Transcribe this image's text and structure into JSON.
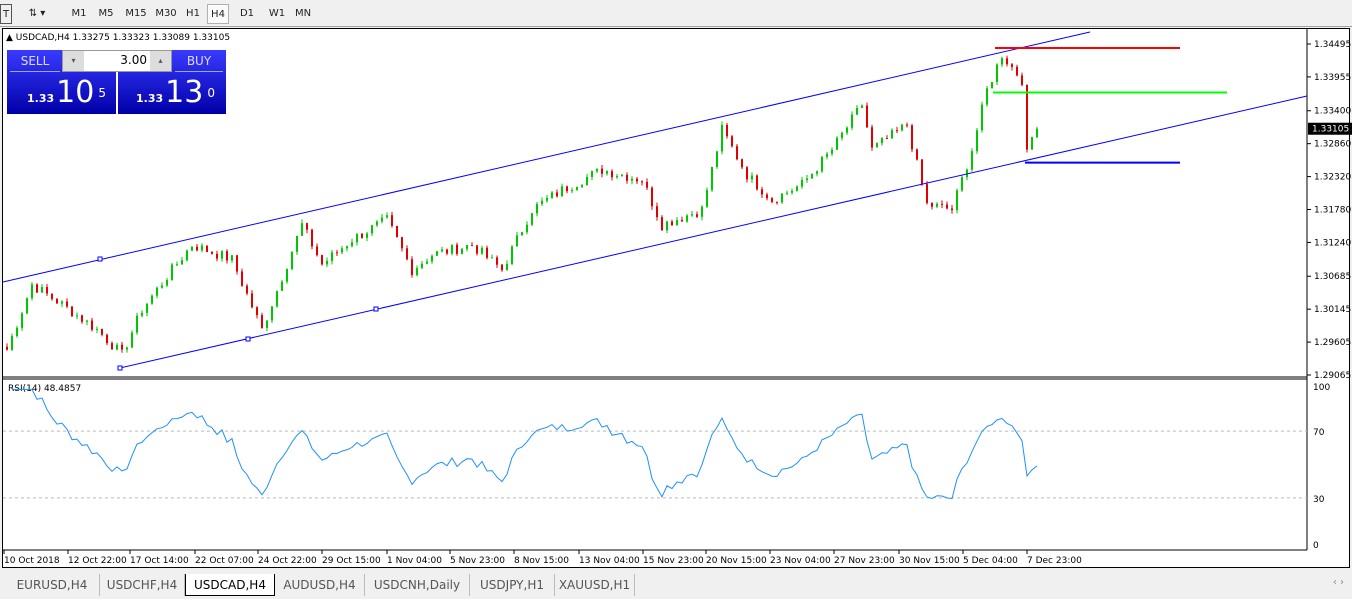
{
  "toolbar": {
    "timeframes": [
      "M1",
      "M5",
      "M15",
      "M30",
      "H1",
      "H4",
      "D1",
      "W1",
      "MN"
    ],
    "active": "H4"
  },
  "chart": {
    "symbol_line": "USDCAD,H4  1.33275 1.33323 1.33089 1.33105",
    "current_price": "1.33105",
    "price_labels": [
      "1.34495",
      "1.33955",
      "1.33400",
      "1.32860",
      "1.32320",
      "1.31780",
      "1.31240",
      "1.30685",
      "1.30145",
      "1.29605",
      "1.29065"
    ],
    "time_labels": [
      "10 Oct 2018",
      "12 Oct 22:00",
      "17 Oct 14:00",
      "22 Oct 07:00",
      "24 Oct 22:00",
      "29 Oct 15:00",
      "1 Nov 04:00",
      "5 Nov 23:00",
      "8 Nov 15:00",
      "13 Nov 04:00",
      "15 Nov 23:00",
      "20 Nov 15:00",
      "23 Nov 04:00",
      "27 Nov 23:00",
      "30 Nov 15:00",
      "5 Dec 04:00",
      "7 Dec 23:00"
    ],
    "colors": {
      "bull": "#00c800",
      "bear": "#e00000",
      "channel": "#0000ff",
      "resistance": "#ff0000",
      "mid": "#00ff00",
      "support": "#0000ff",
      "rsi": "#1e90ff"
    },
    "close_anchors": [
      [
        0,
        1.2948
      ],
      [
        5,
        1.3055
      ],
      [
        11,
        1.3022
      ],
      [
        18,
        1.2981
      ],
      [
        23,
        1.294
      ],
      [
        27,
        1.3014
      ],
      [
        33,
        1.3079
      ],
      [
        37,
        1.312
      ],
      [
        45,
        1.3096
      ],
      [
        51,
        1.2981
      ],
      [
        59,
        1.3153
      ],
      [
        63,
        1.3088
      ],
      [
        69,
        1.3129
      ],
      [
        76,
        1.3161
      ],
      [
        81,
        1.3079
      ],
      [
        85,
        1.3104
      ],
      [
        93,
        1.312
      ],
      [
        99,
        1.3079
      ],
      [
        105,
        1.3178
      ],
      [
        111,
        1.321
      ],
      [
        119,
        1.3243
      ],
      [
        127,
        1.3227
      ],
      [
        131,
        1.3153
      ],
      [
        139,
        1.3178
      ],
      [
        143,
        1.3309
      ],
      [
        148,
        1.3235
      ],
      [
        153,
        1.3194
      ],
      [
        159,
        1.3219
      ],
      [
        165,
        1.3276
      ],
      [
        171,
        1.335
      ],
      [
        173,
        1.3276
      ],
      [
        180,
        1.3317
      ],
      [
        184,
        1.3186
      ],
      [
        189,
        1.3178
      ],
      [
        193,
        1.3276
      ],
      [
        196,
        1.3374
      ],
      [
        199,
        1.3432
      ],
      [
        203,
        1.3391
      ],
      [
        204,
        1.3268
      ],
      [
        206,
        1.3325
      ]
    ],
    "levels": {
      "resistance": 1.3443,
      "mid": 1.337,
      "support": 1.3255
    }
  },
  "rsi": {
    "label": "RSI(14) 48.4857",
    "levels": [
      "100",
      "70",
      "30",
      "0"
    ]
  },
  "trade": {
    "sell": "SELL",
    "buy": "BUY",
    "volume": "3.00",
    "sell_prefix": "1.33",
    "sell_big": "10",
    "sell_sup": "5",
    "buy_prefix": "1.33",
    "buy_big": "13",
    "buy_sup": "0"
  },
  "tabs": [
    "EURUSD,H4",
    "USDCHF,H4",
    "USDCAD,H4",
    "AUDUSD,H4",
    "USDCNH,Daily",
    "USDJPY,H1",
    "XAUUSD,H1"
  ],
  "active_tab": "USDCAD,H4"
}
